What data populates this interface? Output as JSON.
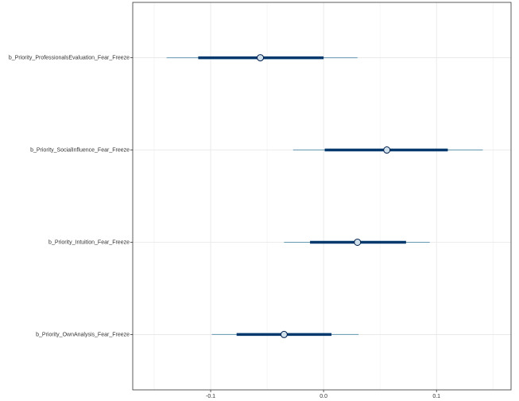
{
  "chart_data": {
    "type": "interval",
    "categories": [
      "b_Priority_ProfessionalsEvaluation_Fear_Freeze",
      "b_Priority_SocialInfluence_Fear_Freeze",
      "b_Priority_Intuition_Fear_Freeze",
      "b_Priority_OwnAnalysis_Fear_Freeze"
    ],
    "estimates": [
      -0.056,
      0.056,
      0.03,
      -0.035
    ],
    "inner_low": [
      -0.111,
      0.001,
      -0.012,
      -0.077
    ],
    "inner_high": [
      0.0,
      0.11,
      0.073,
      0.007
    ],
    "outer_low": [
      -0.139,
      -0.027,
      -0.035,
      -0.099
    ],
    "outer_high": [
      0.03,
      0.141,
      0.094,
      0.031
    ],
    "outer_color": "#6497b1",
    "inner_color": "#03396c",
    "point_fill": "#d1e1ec",
    "point_stroke": "#011f4b",
    "xlim": [
      -0.169,
      0.166
    ],
    "xticks": [
      -0.1,
      {
        "value": 0,
        "label": "0.0"
      },
      0.1
    ],
    "minor_xticks": [
      -0.15,
      -0.05,
      0.05,
      0.15
    ],
    "grid": true
  }
}
